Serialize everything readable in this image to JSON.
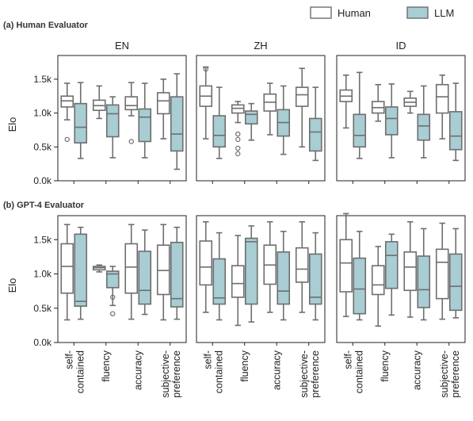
{
  "legend": {
    "human_label": "Human",
    "llm_label": "LLM",
    "human_color": "#ffffff",
    "llm_color": "#a8cdd3",
    "stroke_color": "#6e6e6e"
  },
  "sections": [
    {
      "title": "(a) Human Evaluator"
    },
    {
      "title": "(b) GPT-4 Evaluator"
    }
  ],
  "columns": [
    "EN",
    "ZH",
    "ID"
  ],
  "ylabel": "Elo",
  "yticks": [
    "0.0k",
    "0.5k",
    "1.0k",
    "1.5k"
  ],
  "categories": [
    "self-\ncontained",
    "fluency",
    "accuracy",
    "subjective-\npreference"
  ],
  "chart_data": {
    "type": "box",
    "ylim": [
      0,
      1850
    ],
    "y_ticks": [
      0,
      500,
      1000,
      1500
    ],
    "ylabel": "Elo",
    "categories": [
      "self-contained",
      "fluency",
      "accuracy",
      "subjective-preference"
    ],
    "series": [
      {
        "name": "Human"
      },
      {
        "name": "LLM"
      }
    ],
    "panels": [
      {
        "row": "(a) Human Evaluator",
        "column": "EN",
        "boxes": [
          {
            "category": "self-contained",
            "series": "Human",
            "wl": 900,
            "q1": 1090,
            "med": 1180,
            "q3": 1250,
            "wh": 1440,
            "outliers": [
              610
            ]
          },
          {
            "category": "self-contained",
            "series": "LLM",
            "wl": 330,
            "q1": 560,
            "med": 790,
            "q3": 1140,
            "wh": 1450,
            "outliers": []
          },
          {
            "category": "fluency",
            "series": "Human",
            "wl": 920,
            "q1": 1040,
            "med": 1110,
            "q3": 1190,
            "wh": 1400,
            "outliers": []
          },
          {
            "category": "fluency",
            "series": "LLM",
            "wl": 340,
            "q1": 650,
            "med": 990,
            "q3": 1120,
            "wh": 1240,
            "outliers": []
          },
          {
            "category": "accuracy",
            "series": "Human",
            "wl": 960,
            "q1": 1050,
            "med": 1110,
            "q3": 1240,
            "wh": 1450,
            "outliers": [
              580
            ]
          },
          {
            "category": "accuracy",
            "series": "LLM",
            "wl": 340,
            "q1": 580,
            "med": 940,
            "q3": 1060,
            "wh": 1440,
            "outliers": []
          },
          {
            "category": "subjective-preference",
            "series": "Human",
            "wl": 620,
            "q1": 990,
            "med": 1180,
            "q3": 1300,
            "wh": 1500,
            "outliers": []
          },
          {
            "category": "subjective-preference",
            "series": "LLM",
            "wl": 170,
            "q1": 440,
            "med": 690,
            "q3": 1240,
            "wh": 1580,
            "outliers": []
          }
        ]
      },
      {
        "row": "(a) Human Evaluator",
        "column": "ZH",
        "boxes": [
          {
            "category": "self-contained",
            "series": "Human",
            "wl": 620,
            "q1": 1100,
            "med": 1250,
            "q3": 1400,
            "wh": 1680,
            "outliers": [
              1650
            ]
          },
          {
            "category": "self-contained",
            "series": "LLM",
            "wl": 330,
            "q1": 500,
            "med": 670,
            "q3": 960,
            "wh": 1380,
            "outliers": []
          },
          {
            "category": "fluency",
            "series": "Human",
            "wl": 860,
            "q1": 1000,
            "med": 1070,
            "q3": 1120,
            "wh": 1170,
            "outliers": [
              690,
              610,
              480,
              400
            ]
          },
          {
            "category": "fluency",
            "series": "LLM",
            "wl": 600,
            "q1": 840,
            "med": 980,
            "q3": 1030,
            "wh": 1140,
            "outliers": []
          },
          {
            "category": "accuracy",
            "series": "Human",
            "wl": 680,
            "q1": 1030,
            "med": 1160,
            "q3": 1280,
            "wh": 1440,
            "outliers": []
          },
          {
            "category": "accuracy",
            "series": "LLM",
            "wl": 390,
            "q1": 660,
            "med": 860,
            "q3": 1050,
            "wh": 1400,
            "outliers": []
          },
          {
            "category": "subjective-preference",
            "series": "Human",
            "wl": 500,
            "q1": 1100,
            "med": 1270,
            "q3": 1380,
            "wh": 1660,
            "outliers": []
          },
          {
            "category": "subjective-preference",
            "series": "LLM",
            "wl": 300,
            "q1": 440,
            "med": 720,
            "q3": 920,
            "wh": 1380,
            "outliers": []
          }
        ]
      },
      {
        "row": "(a) Human Evaluator",
        "column": "ID",
        "boxes": [
          {
            "category": "self-contained",
            "series": "Human",
            "wl": 780,
            "q1": 1170,
            "med": 1250,
            "q3": 1340,
            "wh": 1560,
            "outliers": []
          },
          {
            "category": "self-contained",
            "series": "LLM",
            "wl": 330,
            "q1": 500,
            "med": 670,
            "q3": 980,
            "wh": 1600,
            "outliers": []
          },
          {
            "category": "fluency",
            "series": "Human",
            "wl": 880,
            "q1": 1000,
            "med": 1080,
            "q3": 1170,
            "wh": 1420,
            "outliers": []
          },
          {
            "category": "fluency",
            "series": "LLM",
            "wl": 340,
            "q1": 680,
            "med": 920,
            "q3": 1090,
            "wh": 1430,
            "outliers": []
          },
          {
            "category": "accuracy",
            "series": "Human",
            "wl": 1000,
            "q1": 1100,
            "med": 1160,
            "q3": 1220,
            "wh": 1320,
            "outliers": []
          },
          {
            "category": "accuracy",
            "series": "LLM",
            "wl": 340,
            "q1": 600,
            "med": 810,
            "q3": 980,
            "wh": 1400,
            "outliers": []
          },
          {
            "category": "subjective-preference",
            "series": "Human",
            "wl": 620,
            "q1": 1000,
            "med": 1240,
            "q3": 1420,
            "wh": 1560,
            "outliers": []
          },
          {
            "category": "subjective-preference",
            "series": "LLM",
            "wl": 300,
            "q1": 460,
            "med": 660,
            "q3": 1020,
            "wh": 1440,
            "outliers": []
          }
        ]
      },
      {
        "row": "(b) GPT-4 Evaluator",
        "column": "EN",
        "boxes": [
          {
            "category": "self-contained",
            "series": "Human",
            "wl": 330,
            "q1": 720,
            "med": 1110,
            "q3": 1440,
            "wh": 1720,
            "outliers": []
          },
          {
            "category": "self-contained",
            "series": "LLM",
            "wl": 340,
            "q1": 530,
            "med": 600,
            "q3": 1580,
            "wh": 1680,
            "outliers": []
          },
          {
            "category": "fluency",
            "series": "Human",
            "wl": 1030,
            "q1": 1060,
            "med": 1090,
            "q3": 1110,
            "wh": 1130,
            "outliers": []
          },
          {
            "category": "fluency",
            "series": "LLM",
            "wl": 540,
            "q1": 800,
            "med": 1000,
            "q3": 1040,
            "wh": 1110,
            "outliers": [
              660,
              420
            ]
          },
          {
            "category": "accuracy",
            "series": "Human",
            "wl": 340,
            "q1": 720,
            "med": 1100,
            "q3": 1440,
            "wh": 1720,
            "outliers": []
          },
          {
            "category": "accuracy",
            "series": "LLM",
            "wl": 410,
            "q1": 560,
            "med": 760,
            "q3": 1330,
            "wh": 1640,
            "outliers": []
          },
          {
            "category": "subjective-preference",
            "series": "Human",
            "wl": 330,
            "q1": 700,
            "med": 1050,
            "q3": 1420,
            "wh": 1720,
            "outliers": []
          },
          {
            "category": "subjective-preference",
            "series": "LLM",
            "wl": 340,
            "q1": 520,
            "med": 640,
            "q3": 1460,
            "wh": 1680,
            "outliers": []
          }
        ]
      },
      {
        "row": "(b) GPT-4 Evaluator",
        "column": "ZH",
        "boxes": [
          {
            "category": "self-contained",
            "series": "Human",
            "wl": 440,
            "q1": 840,
            "med": 1100,
            "q3": 1480,
            "wh": 1760,
            "outliers": []
          },
          {
            "category": "self-contained",
            "series": "LLM",
            "wl": 330,
            "q1": 560,
            "med": 650,
            "q3": 1220,
            "wh": 1600,
            "outliers": []
          },
          {
            "category": "fluency",
            "series": "Human",
            "wl": 250,
            "q1": 660,
            "med": 860,
            "q3": 1120,
            "wh": 1560,
            "outliers": []
          },
          {
            "category": "fluency",
            "series": "LLM",
            "wl": 300,
            "q1": 560,
            "med": 1470,
            "q3": 1520,
            "wh": 1700,
            "outliers": []
          },
          {
            "category": "accuracy",
            "series": "Human",
            "wl": 440,
            "q1": 850,
            "med": 1130,
            "q3": 1420,
            "wh": 1760,
            "outliers": []
          },
          {
            "category": "accuracy",
            "series": "LLM",
            "wl": 330,
            "q1": 560,
            "med": 750,
            "q3": 1320,
            "wh": 1620,
            "outliers": []
          },
          {
            "category": "subjective-preference",
            "series": "Human",
            "wl": 440,
            "q1": 880,
            "med": 1070,
            "q3": 1380,
            "wh": 1760,
            "outliers": []
          },
          {
            "category": "subjective-preference",
            "series": "LLM",
            "wl": 330,
            "q1": 560,
            "med": 660,
            "q3": 1290,
            "wh": 1600,
            "outliers": []
          }
        ]
      },
      {
        "row": "(b) GPT-4 Evaluator",
        "column": "ID",
        "boxes": [
          {
            "category": "self-contained",
            "series": "Human",
            "wl": 380,
            "q1": 740,
            "med": 1160,
            "q3": 1500,
            "wh": 1880,
            "outliers": []
          },
          {
            "category": "self-contained",
            "series": "LLM",
            "wl": 330,
            "q1": 420,
            "med": 780,
            "q3": 1230,
            "wh": 1620,
            "outliers": []
          },
          {
            "category": "fluency",
            "series": "Human",
            "wl": 240,
            "q1": 700,
            "med": 840,
            "q3": 1120,
            "wh": 1400,
            "outliers": []
          },
          {
            "category": "fluency",
            "series": "LLM",
            "wl": 400,
            "q1": 790,
            "med": 1270,
            "q3": 1470,
            "wh": 1580,
            "outliers": []
          },
          {
            "category": "accuracy",
            "series": "Human",
            "wl": 370,
            "q1": 760,
            "med": 1100,
            "q3": 1320,
            "wh": 1760,
            "outliers": []
          },
          {
            "category": "accuracy",
            "series": "LLM",
            "wl": 330,
            "q1": 510,
            "med": 770,
            "q3": 1260,
            "wh": 1660,
            "outliers": []
          },
          {
            "category": "subjective-preference",
            "series": "Human",
            "wl": 340,
            "q1": 640,
            "med": 1170,
            "q3": 1360,
            "wh": 1740,
            "outliers": []
          },
          {
            "category": "subjective-preference",
            "series": "LLM",
            "wl": 360,
            "q1": 470,
            "med": 820,
            "q3": 1290,
            "wh": 1660,
            "outliers": []
          }
        ]
      }
    ]
  }
}
